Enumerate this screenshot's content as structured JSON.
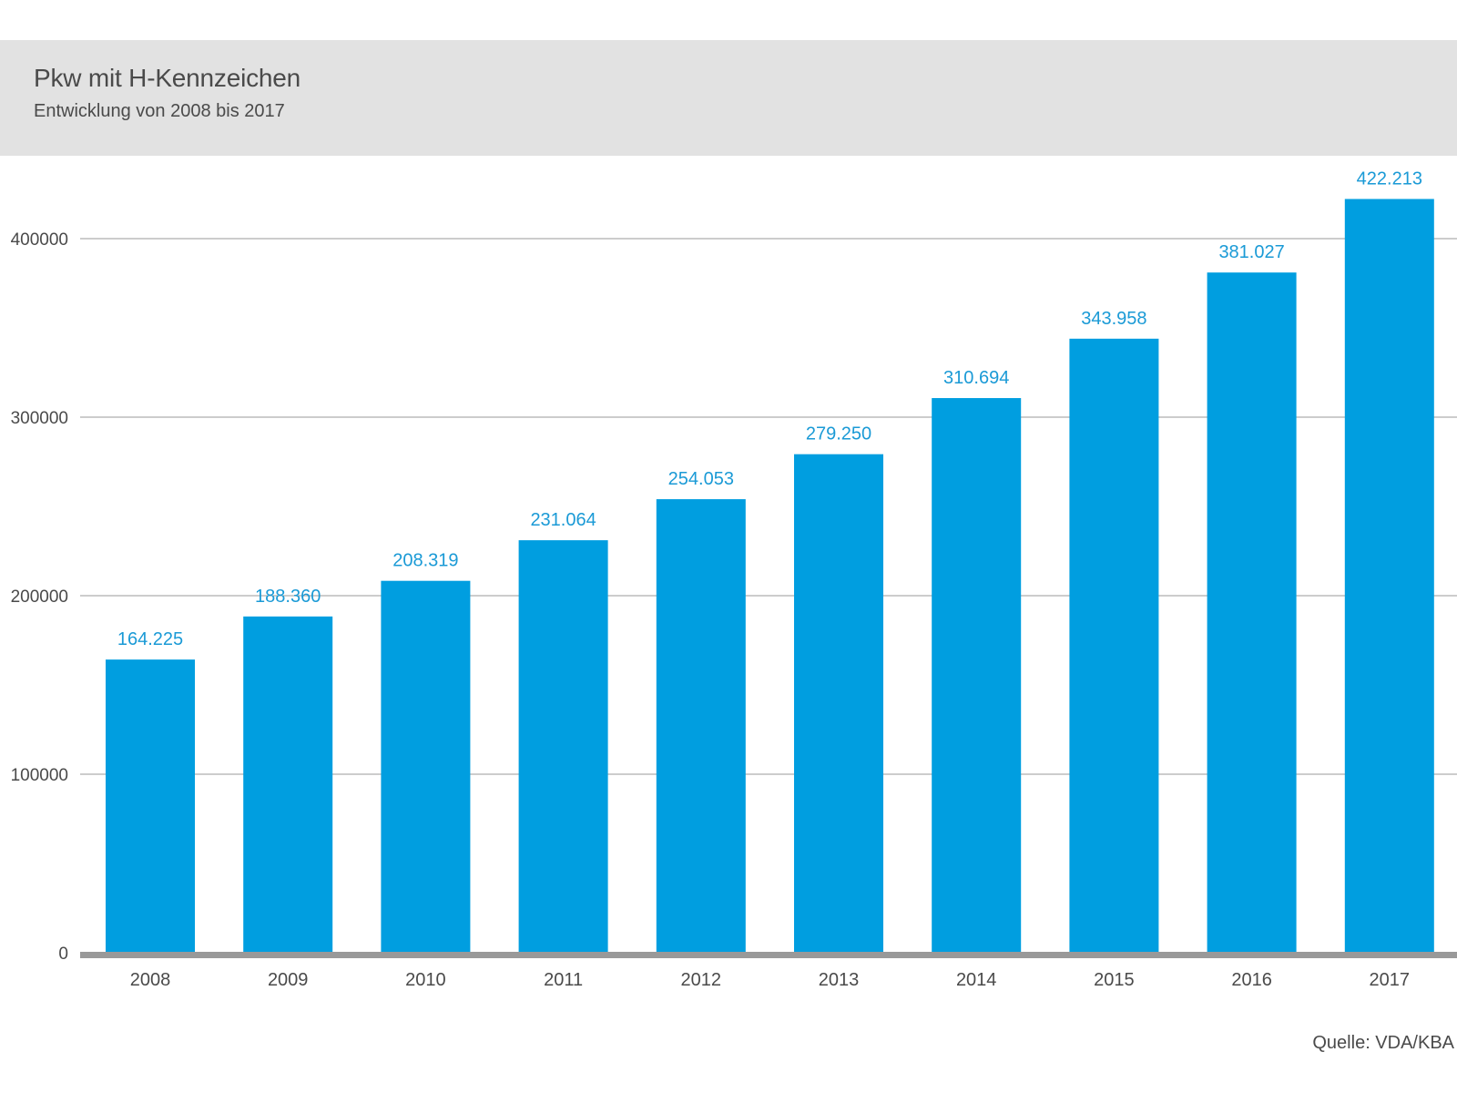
{
  "header": {
    "title": "Pkw mit H-Kennzeichen",
    "subtitle": "Entwicklung von 2008 bis 2017"
  },
  "footer": {
    "source": "Quelle: VDA/KBA"
  },
  "colors": {
    "bar": "#009ee0",
    "value_label": "#1a9ad6",
    "gridline": "#9a9a9a",
    "baseline": "#999999",
    "axis_text": "#4a4a4a",
    "header_band": "#e2e2e2"
  },
  "chart_data": {
    "type": "bar",
    "title": "Pkw mit H-Kennzeichen",
    "subtitle": "Entwicklung von 2008 bis 2017",
    "categories": [
      "2008",
      "2009",
      "2010",
      "2011",
      "2012",
      "2013",
      "2014",
      "2015",
      "2016",
      "2017"
    ],
    "values": [
      164225,
      188360,
      208319,
      231064,
      254053,
      279250,
      310694,
      343958,
      381027,
      422213
    ],
    "value_labels": [
      "164.225",
      "188.360",
      "208.319",
      "231.064",
      "254.053",
      "279.250",
      "310.694",
      "343.958",
      "381.027",
      "422.213"
    ],
    "y_ticks": [
      0,
      100000,
      200000,
      300000,
      400000
    ],
    "y_tick_labels": [
      "0",
      "100000",
      "200000",
      "300000",
      "400000"
    ],
    "ylim": [
      0,
      400000
    ],
    "grid": true,
    "xlabel": "",
    "ylabel": ""
  }
}
